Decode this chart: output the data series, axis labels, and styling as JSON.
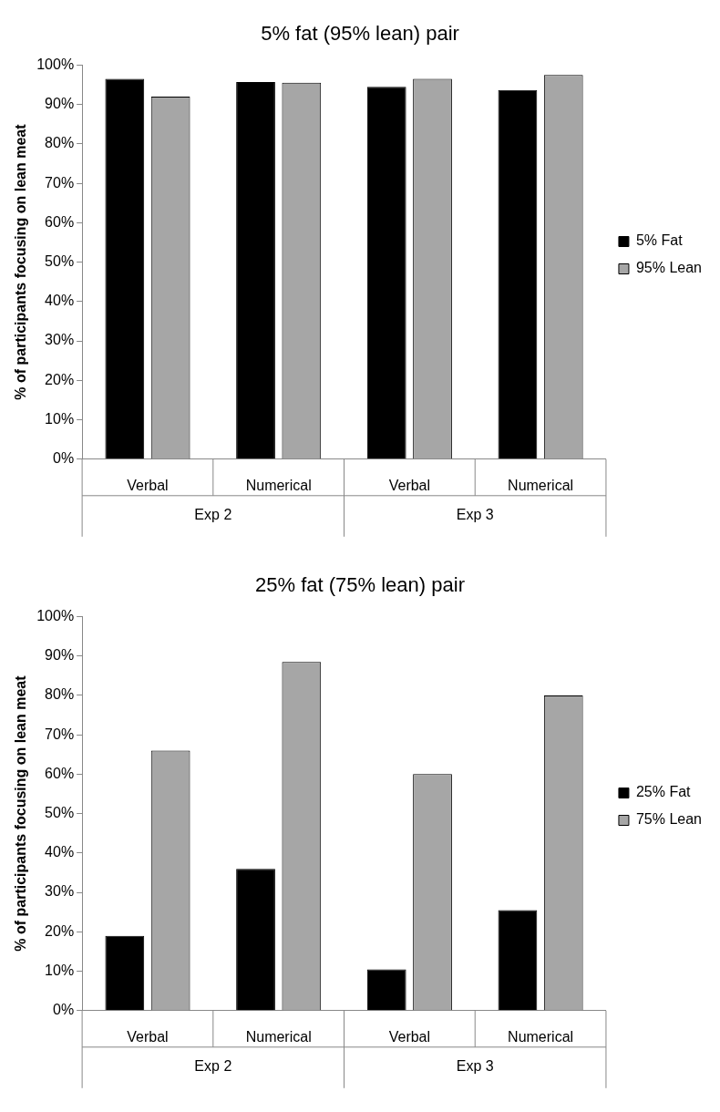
{
  "chart_data": [
    {
      "type": "bar",
      "title": "5% fat (95% lean) pair",
      "ylabel": "% of participants focusing on lean meat",
      "categories": [
        "Verbal",
        "Numerical",
        "Verbal",
        "Numerical"
      ],
      "series": [
        {
          "name": "5% Fat",
          "color": "#000000",
          "values": [
            96.5,
            95.7,
            94.5,
            93.7
          ]
        },
        {
          "name": "95% Lean",
          "color": "#a6a6a6",
          "values": [
            92,
            95.5,
            96.5,
            97.5
          ]
        }
      ],
      "annotations": [
        "Exp 2",
        "Exp 3"
      ],
      "ylim": [
        0,
        100
      ],
      "yticks": [
        {
          "value": 0,
          "label": "0%"
        },
        {
          "value": 10,
          "label": "10%"
        },
        {
          "value": 20,
          "label": "20%"
        },
        {
          "value": 30,
          "label": "30%"
        },
        {
          "value": 40,
          "label": "40%"
        },
        {
          "value": 50,
          "label": "50%"
        },
        {
          "value": 60,
          "label": "60%"
        },
        {
          "value": 70,
          "label": "70%"
        },
        {
          "value": 80,
          "label": "80%"
        },
        {
          "value": 90,
          "label": "90%"
        },
        {
          "value": 100,
          "label": "100%"
        }
      ],
      "grid": false,
      "legend": "right"
    },
    {
      "type": "bar",
      "title": "25% fat (75% lean) pair",
      "ylabel": "% of participants focusing on lean meat",
      "categories": [
        "Verbal",
        "Numerical",
        "Verbal",
        "Numerical"
      ],
      "series": [
        {
          "name": "25% Fat",
          "color": "#000000",
          "values": [
            19,
            36,
            10.5,
            25.5
          ]
        },
        {
          "name": "75% Lean",
          "color": "#a6a6a6",
          "values": [
            66,
            88.5,
            60,
            80
          ]
        }
      ],
      "annotations": [
        "Exp 2",
        "Exp 3"
      ],
      "ylim": [
        0,
        100
      ],
      "yticks": [
        {
          "value": 0,
          "label": "0%"
        },
        {
          "value": 10,
          "label": "10%"
        },
        {
          "value": 20,
          "label": "20%"
        },
        {
          "value": 30,
          "label": "30%"
        },
        {
          "value": 40,
          "label": "40%"
        },
        {
          "value": 50,
          "label": "50%"
        },
        {
          "value": 60,
          "label": "60%"
        },
        {
          "value": 70,
          "label": "70%"
        },
        {
          "value": 80,
          "label": "80%"
        },
        {
          "value": 90,
          "label": "90%"
        },
        {
          "value": 100,
          "label": "100%"
        }
      ],
      "grid": false,
      "legend": "right"
    }
  ]
}
